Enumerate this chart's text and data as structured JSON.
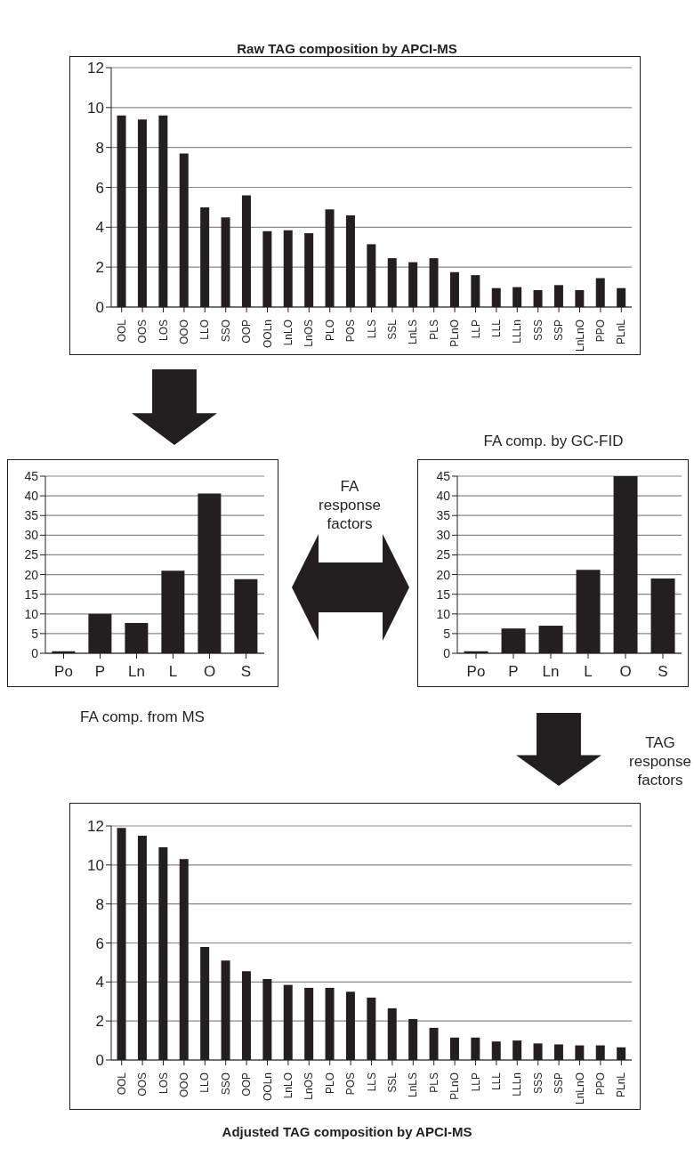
{
  "chart_data": [
    {
      "type": "bar",
      "title": "Raw TAG composition by APCI-MS",
      "categories": [
        "OOL",
        "OOS",
        "LOS",
        "OOO",
        "LLO",
        "SSO",
        "OOP",
        "OOLn",
        "LnLO",
        "LnOS",
        "PLO",
        "POS",
        "LLS",
        "SSL",
        "LnLS",
        "PLS",
        "PLnO",
        "LLP",
        "LLL",
        "LLLn",
        "SSS",
        "SSP",
        "LnLnO",
        "PPO",
        "PLnL"
      ],
      "values": [
        9.6,
        9.4,
        9.6,
        7.7,
        5.0,
        4.5,
        5.6,
        3.8,
        3.85,
        3.7,
        4.9,
        4.6,
        3.15,
        2.45,
        2.25,
        2.45,
        1.75,
        1.6,
        0.95,
        1.0,
        0.85,
        1.1,
        0.85,
        1.45,
        0.95
      ],
      "color": "#231f20",
      "ylim": [
        0,
        12
      ],
      "yticks": [
        0,
        2,
        4,
        6,
        8,
        10,
        12
      ],
      "grid": "y"
    },
    {
      "type": "bar",
      "title": "FA comp. from MS",
      "categories": [
        "Po",
        "P",
        "Ln",
        "L",
        "O",
        "S"
      ],
      "values": [
        0.5,
        10,
        7.7,
        21,
        40.6,
        18.8
      ],
      "color": "#231f20",
      "ylim": [
        0,
        45
      ],
      "yticks": [
        0,
        5,
        10,
        15,
        20,
        25,
        30,
        35,
        40,
        45
      ],
      "grid": "y",
      "annotations": [
        "FA response factors"
      ]
    },
    {
      "type": "bar",
      "title": "FA comp. by GC-FID",
      "categories": [
        "Po",
        "P",
        "Ln",
        "L",
        "O",
        "S"
      ],
      "values": [
        0.5,
        6.3,
        7,
        21.2,
        45,
        19
      ],
      "color": "#231f20",
      "ylim": [
        0,
        45
      ],
      "yticks": [
        0,
        5,
        10,
        15,
        20,
        25,
        30,
        35,
        40,
        45
      ],
      "grid": "y"
    },
    {
      "type": "bar",
      "title": "Adjusted TAG composition by APCI-MS",
      "categories": [
        "OOL",
        "OOS",
        "LOS",
        "OOO",
        "LLO",
        "SSO",
        "OOP",
        "OOLn",
        "LnLO",
        "LnOS",
        "PLO",
        "POS",
        "LLS",
        "SSL",
        "LnLS",
        "PLS",
        "PLnO",
        "LLP",
        "LLL",
        "LLLn",
        "SSS",
        "SSP",
        "LnLnO",
        "PPO",
        "PLnL"
      ],
      "values": [
        11.9,
        11.5,
        10.9,
        10.3,
        5.8,
        5.1,
        4.55,
        4.15,
        3.85,
        3.7,
        3.7,
        3.5,
        3.2,
        2.65,
        2.1,
        1.65,
        1.15,
        1.15,
        0.95,
        1.0,
        0.85,
        0.8,
        0.75,
        0.75,
        0.65
      ],
      "color": "#231f20",
      "ylim": [
        0,
        12
      ],
      "yticks": [
        0,
        2,
        4,
        6,
        8,
        10,
        12
      ],
      "grid": "y",
      "annotations": [
        "TAG response factors"
      ]
    }
  ]
}
